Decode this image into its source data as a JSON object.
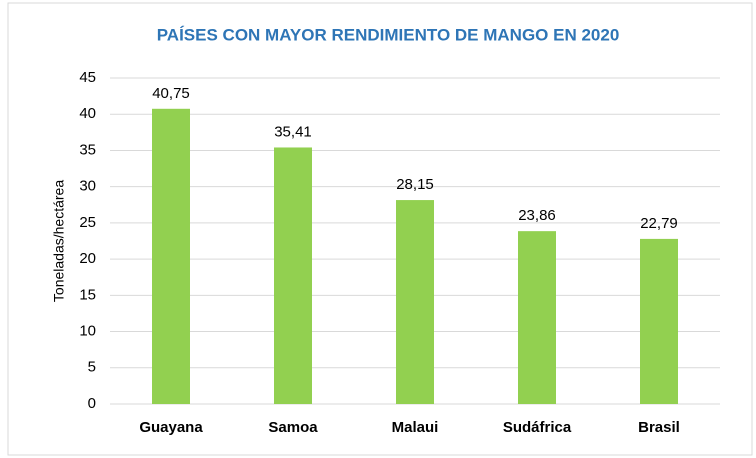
{
  "chart_data": {
    "type": "bar",
    "title": "PAÍSES CON MAYOR RENDIMIENTO DE MANGO EN 2020",
    "y_label": "Toneladas/hectárea",
    "categories": [
      "Guayana",
      "Samoa",
      "Malaui",
      "Sudáfrica",
      "Brasil"
    ],
    "values": [
      40.75,
      35.41,
      28.15,
      23.86,
      22.79
    ],
    "value_labels": [
      "40,75",
      "35,41",
      "28,15",
      "23,86",
      "22,79"
    ],
    "color": "#92d050",
    "ylim": [
      0,
      45
    ],
    "yticks": [
      0,
      5,
      10,
      15,
      20,
      25,
      30,
      35,
      40,
      45
    ],
    "grid": true
  }
}
